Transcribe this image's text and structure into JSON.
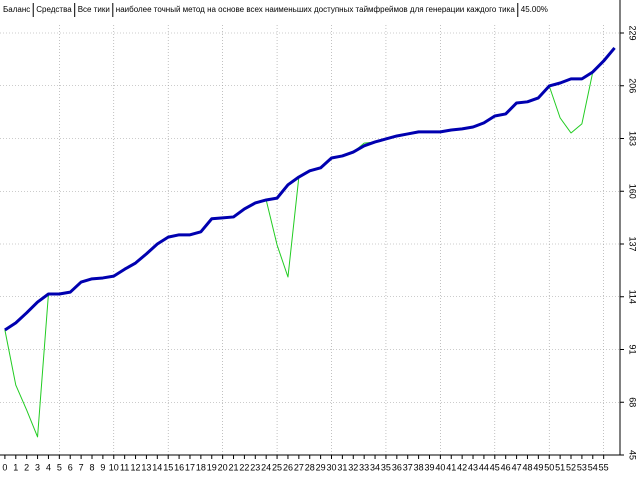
{
  "chart_data": {
    "type": "line",
    "legend": [
      "Баланс",
      "Средства",
      "Все тики",
      "наиболее точный метод на основе всех наименьших доступных таймфреймов для генерации каждого тика",
      "45.00%"
    ],
    "x": [
      0,
      1,
      2,
      3,
      4,
      5,
      6,
      7,
      8,
      9,
      10,
      11,
      12,
      13,
      14,
      15,
      16,
      17,
      18,
      19,
      20,
      21,
      22,
      23,
      24,
      25,
      26,
      27,
      28,
      29,
      30,
      31,
      32,
      33,
      34,
      35,
      36,
      37,
      38,
      39,
      40,
      41,
      42,
      43,
      44,
      45,
      46,
      47,
      48,
      49,
      50,
      51,
      52,
      53,
      54,
      55,
      56
    ],
    "series": [
      {
        "name": "Средства",
        "color": "#22cc22",
        "values": [
          99.5,
          75.5,
          64.6,
          52.9,
          115.2,
          115.2,
          116,
          120.4,
          121.8,
          122.2,
          123,
          126,
          128.7,
          132.7,
          137,
          140,
          141,
          141,
          142.3,
          148,
          148.4,
          148.8,
          152.3,
          154.9,
          156.2,
          136.6,
          122.6,
          166.2,
          168.9,
          170.2,
          174.5,
          175.4,
          177.1,
          181,
          181.5,
          182.8,
          184.1,
          185,
          185.9,
          185.9,
          185.9,
          186.7,
          187.2,
          188,
          189.8,
          192.8,
          193.7,
          198.5,
          199,
          200.7,
          205.9,
          192,
          185.4,
          189.4,
          212,
          216.8,
          222.5
        ]
      },
      {
        "name": "Баланс",
        "color": "#0000b0",
        "values": [
          99.5,
          102.6,
          107,
          111.7,
          115.2,
          115.2,
          116,
          120.4,
          121.8,
          122.2,
          123,
          126,
          128.7,
          132.7,
          137,
          140,
          141,
          141,
          142.3,
          148,
          148.4,
          148.8,
          152.3,
          154.9,
          156.2,
          157,
          162.8,
          166.2,
          168.9,
          170.2,
          174.5,
          175.4,
          177.1,
          179.8,
          181.5,
          182.8,
          184.1,
          185,
          185.9,
          185.9,
          185.9,
          186.7,
          187.2,
          188,
          189.8,
          192.8,
          193.7,
          198.5,
          199,
          200.7,
          205.9,
          207.2,
          209,
          209,
          212,
          216.8,
          222.5
        ]
      }
    ],
    "xlim": [
      -0.45,
      56.5
    ],
    "xticks": [
      0,
      1,
      2,
      3,
      4,
      5,
      6,
      7,
      8,
      9,
      10,
      11,
      12,
      13,
      14,
      15,
      16,
      17,
      18,
      19,
      20,
      21,
      22,
      23,
      24,
      25,
      26,
      27,
      28,
      29,
      30,
      31,
      32,
      33,
      34,
      35,
      36,
      37,
      38,
      39,
      40,
      41,
      42,
      43,
      44,
      45,
      46,
      47,
      48,
      49,
      50,
      51,
      52,
      53,
      54,
      55
    ],
    "ylim": [
      45,
      229
    ],
    "yticks": [
      45,
      68,
      91,
      114,
      137,
      160,
      183,
      206,
      229
    ],
    "grid": true
  }
}
